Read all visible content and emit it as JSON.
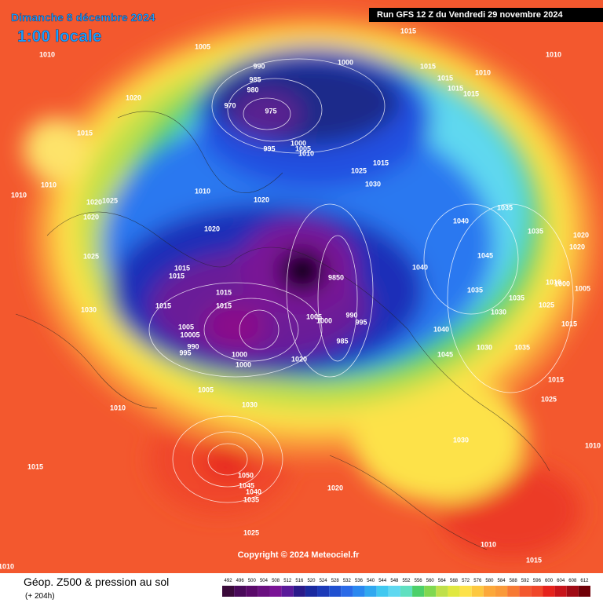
{
  "header": {
    "date": "Dimanche 8 décembre 2024",
    "time": "1:00 locale",
    "run": "Run GFS 12 Z du Vendredi 29 novembre 2024"
  },
  "footer": {
    "copyright": "Copyright © 2024 Meteociel.fr",
    "legend_title": "Géop. Z500 & pression au sol",
    "lead": "(+ 204h)",
    "scale": [
      492,
      496,
      500,
      504,
      508,
      512,
      516,
      520,
      524,
      528,
      532,
      536,
      540,
      544,
      548,
      552,
      556,
      560,
      564,
      568,
      572,
      576,
      580,
      584,
      588,
      592,
      596,
      600,
      604,
      608,
      612
    ]
  },
  "isobar_labels": [
    1005,
    1010,
    1015,
    1010,
    1020,
    990,
    985,
    980,
    970,
    975,
    1000,
    1015,
    1015,
    1010,
    1015,
    1015,
    1015,
    995,
    1000,
    1005,
    1010,
    1015,
    1025,
    1030,
    1010,
    1010,
    1010,
    1020,
    1025,
    1020,
    1020,
    1020,
    1035,
    1040,
    1035,
    1020,
    1020,
    1025,
    1015,
    1015,
    1040,
    1045,
    9850,
    1015,
    1015,
    1015,
    1030,
    1035,
    1010,
    1000,
    1005,
    1035,
    1025,
    1030,
    1005,
    1000,
    990,
    995,
    1005,
    10005,
    1040,
    1015,
    985,
    995,
    990,
    1030,
    1035,
    1000,
    1020,
    1045,
    1000,
    1015,
    1005,
    1025,
    1010,
    1030,
    1030,
    1015,
    1050,
    1045,
    1040,
    1035,
    1020,
    1025,
    1010,
    1015,
    1010,
    1010
  ]
}
